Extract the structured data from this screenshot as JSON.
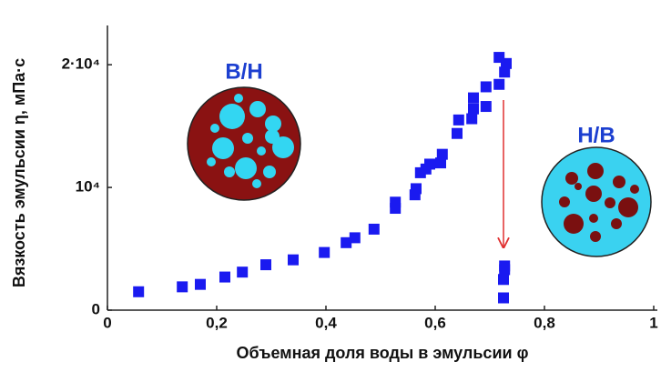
{
  "chart_data": {
    "type": "scatter",
    "xlabel": "Объемная доля воды в эмульсии φ",
    "ylabel": "Вязкость эмульсии η, мПа·с",
    "annotations": [
      "В/Н",
      "Н/В"
    ],
    "xlim": [
      0,
      1
    ],
    "ylim": [
      0,
      23200
    ],
    "xticks": [
      0,
      {
        "value": 0.2,
        "label": "0,2"
      },
      {
        "value": 0.4,
        "label": "0,4"
      },
      {
        "value": 0.6,
        "label": "0,6"
      },
      {
        "value": 0.8,
        "label": "0,8"
      },
      1
    ],
    "yticks": [
      0,
      {
        "value": 10000,
        "label": "10⁴"
      },
      {
        "value": 20000,
        "label": "2·10⁴"
      }
    ],
    "series": [
      {
        "color": "#1a1af0",
        "x": [
          0.057,
          0.137,
          0.17,
          0.215,
          0.247,
          0.29,
          0.34,
          0.397,
          0.437,
          0.453,
          0.488,
          0.527,
          0.527,
          0.563,
          0.565,
          0.573,
          0.583,
          0.59,
          0.61,
          0.613,
          0.64,
          0.643,
          0.667,
          0.67,
          0.67,
          0.693,
          0.693,
          0.717,
          0.717,
          0.727,
          0.73,
          0.725,
          0.725,
          0.727,
          0.727
        ],
        "values": [
          1500,
          1900,
          2100,
          2700,
          3100,
          3700,
          4100,
          4700,
          5500,
          5900,
          6600,
          8300,
          8800,
          9400,
          9900,
          11200,
          11500,
          11900,
          12000,
          12700,
          14400,
          15500,
          15600,
          16400,
          17300,
          16600,
          18200,
          18400,
          20600,
          19400,
          20100,
          1000,
          2500,
          3300,
          3600
        ]
      }
    ]
  }
}
